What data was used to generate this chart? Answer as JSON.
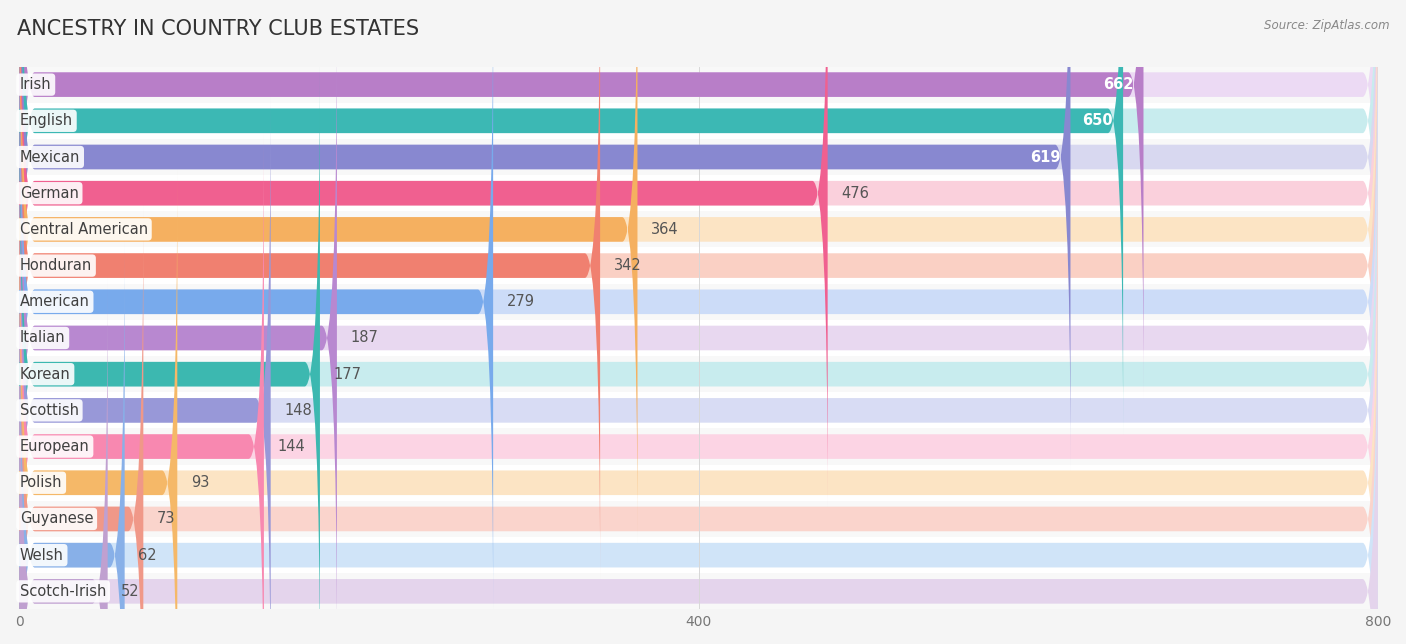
{
  "title": "ANCESTRY IN COUNTRY CLUB ESTATES",
  "source": "Source: ZipAtlas.com",
  "categories": [
    "Irish",
    "English",
    "Mexican",
    "German",
    "Central American",
    "Honduran",
    "American",
    "Italian",
    "Korean",
    "Scottish",
    "European",
    "Polish",
    "Guyanese",
    "Welsh",
    "Scotch-Irish"
  ],
  "values": [
    662,
    650,
    619,
    476,
    364,
    342,
    279,
    187,
    177,
    148,
    144,
    93,
    73,
    62,
    52
  ],
  "bar_colors": [
    "#b87ec8",
    "#3cb8b4",
    "#8888d0",
    "#f06090",
    "#f5b060",
    "#f08070",
    "#78aaec",
    "#b888d0",
    "#3cb8b0",
    "#9898d8",
    "#f888b0",
    "#f5b868",
    "#f09888",
    "#88b0e8",
    "#c0a0d0"
  ],
  "bar_bg_colors": [
    "#ecdaf4",
    "#c8ecee",
    "#d8d8f0",
    "#fad0dc",
    "#fce4c4",
    "#fad0c4",
    "#ccdcf8",
    "#e8d8f0",
    "#c8ecee",
    "#d8dcf4",
    "#fcd4e4",
    "#fce4c4",
    "#fad4cc",
    "#d0e4f8",
    "#e4d4ec"
  ],
  "xlim": [
    0,
    800
  ],
  "xticks": [
    0,
    400,
    800
  ],
  "white_label_threshold": 500,
  "background_color": "#f5f5f5",
  "row_bg_color": "#f0f0f0",
  "bar_height": 0.68,
  "title_fontsize": 15,
  "value_fontsize": 10.5,
  "label_fontsize": 10.5
}
